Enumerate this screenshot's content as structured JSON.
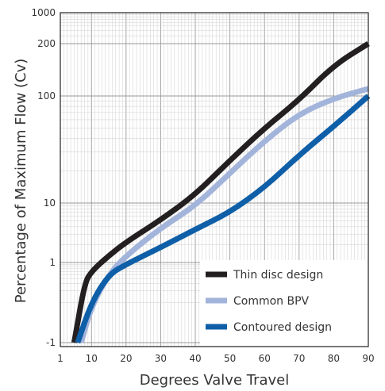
{
  "chart_data": {
    "type": "line",
    "title": "",
    "xlabel": "Degrees Valve Travel",
    "ylabel": "Percentage of Maximum Flow (Cv)",
    "xlim": [
      1,
      90
    ],
    "x_ticks": [
      1,
      10,
      20,
      30,
      40,
      50,
      60,
      70,
      80,
      90
    ],
    "y_ticks": [
      "-1",
      "1",
      "10",
      "100",
      "200",
      "1000"
    ],
    "grid": true,
    "legend_position": "bottom-right",
    "colors": {
      "grid": "#999999",
      "axis": "#222222",
      "text": "#333333"
    },
    "series": [
      {
        "name": "Thin disc design",
        "color": "#231f20",
        "points": [
          {
            "x": 5,
            "y": "-1"
          },
          {
            "x": 8,
            "y": 0.3
          },
          {
            "x": 10,
            "y": 0.6
          },
          {
            "x": 15,
            "y": 1.3
          },
          {
            "x": 20,
            "y": 2.2
          },
          {
            "x": 30,
            "y": 5.2
          },
          {
            "x": 40,
            "y": 12
          },
          {
            "x": 50,
            "y": 25
          },
          {
            "x": 60,
            "y": 50
          },
          {
            "x": 70,
            "y": 92
          },
          {
            "x": 80,
            "y": 150
          },
          {
            "x": 90,
            "y": 200
          }
        ]
      },
      {
        "name": "Common BPV",
        "color": "#a3b4db",
        "points": [
          {
            "x": 7,
            "y": "-1"
          },
          {
            "x": 10,
            "y": 0.08
          },
          {
            "x": 15,
            "y": 0.5
          },
          {
            "x": 20,
            "y": 1.3
          },
          {
            "x": 30,
            "y": 3.8
          },
          {
            "x": 40,
            "y": 9
          },
          {
            "x": 50,
            "y": 19
          },
          {
            "x": 60,
            "y": 38
          },
          {
            "x": 70,
            "y": 68
          },
          {
            "x": 80,
            "y": 95
          },
          {
            "x": 90,
            "y": 110
          }
        ]
      },
      {
        "name": "Contoured design",
        "color": "#0e5fa8",
        "points": [
          {
            "x": 6,
            "y": "-1"
          },
          {
            "x": 10,
            "y": 0.1
          },
          {
            "x": 15,
            "y": 0.5
          },
          {
            "x": 20,
            "y": 0.9
          },
          {
            "x": 30,
            "y": 1.8
          },
          {
            "x": 40,
            "y": 3.6
          },
          {
            "x": 50,
            "y": 7
          },
          {
            "x": 60,
            "y": 14
          },
          {
            "x": 70,
            "y": 28
          },
          {
            "x": 80,
            "y": 52
          },
          {
            "x": 90,
            "y": 100
          }
        ]
      }
    ]
  }
}
